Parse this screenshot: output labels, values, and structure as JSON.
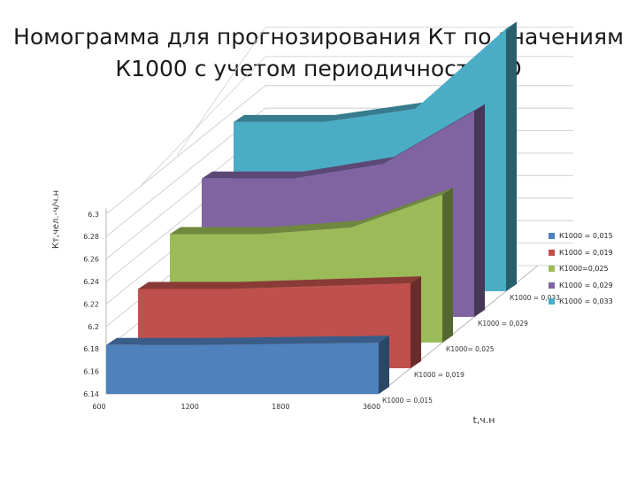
{
  "title_line1": "Номограмма для прогнозирования Кт по значениям",
  "title_line2": "К1000 с учетом периодичности ТО",
  "chart_data": {
    "type": "area",
    "view": "3d",
    "title": "Номограмма для прогнозирования Кт по значениям К1000 с учетом периодичности ТО",
    "ylabel": "Кт,чел.-ч/ч.н",
    "xlabel": "t,ч.н",
    "x": [
      "600",
      "1200",
      "1800",
      "3600"
    ],
    "yticks": [
      "6.14",
      "6.16",
      "6.18",
      "6.2",
      "6.22",
      "6.24",
      "6.26",
      "6.28",
      "6.3"
    ],
    "ylim": [
      6.14,
      6.3
    ],
    "zticks": [
      "К1000 = 0,015",
      "К1000 = 0,019",
      "К1000= 0,025",
      "К1000 = 0,029",
      "К1000 = 0,033"
    ],
    "series": [
      {
        "name": "К1000 = 0,015",
        "values": [
          6.1835,
          6.1835,
          6.1845,
          6.1855
        ],
        "color": "#4F81BD"
      },
      {
        "name": "К1000 = 0,019",
        "values": [
          6.2105,
          6.2105,
          6.213,
          6.2155
        ],
        "color": "#C0504D"
      },
      {
        "name": "К1000=0,025",
        "values": [
          6.2365,
          6.2365,
          6.2425,
          6.2715
        ],
        "color": "#9BBB59"
      },
      {
        "name": "К1000 = 0,029",
        "values": [
          6.263,
          6.263,
          6.276,
          6.323
        ],
        "color": "#8064A2"
      },
      {
        "name": "К1000 = 0,033",
        "values": [
          6.2905,
          6.2905,
          6.302,
          6.3735
        ],
        "color": "#4BACC6"
      }
    ],
    "grid": true,
    "legend": "right"
  }
}
